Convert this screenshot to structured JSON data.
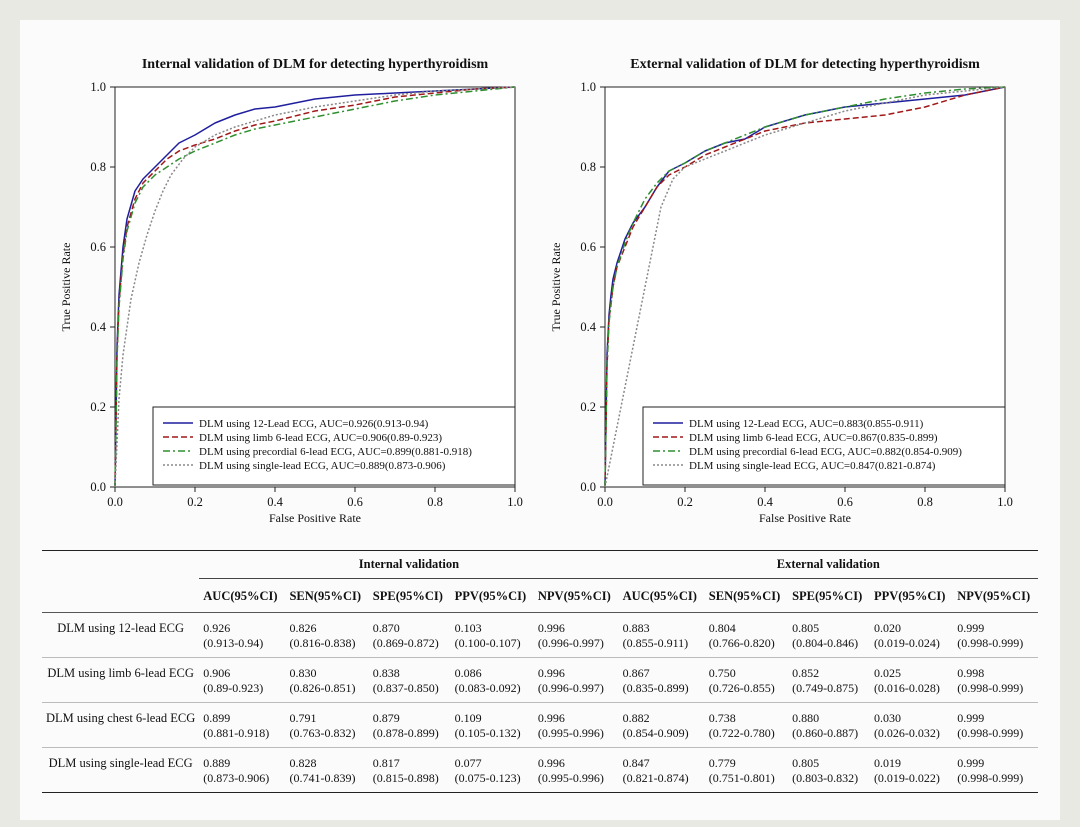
{
  "chart_data": [
    {
      "type": "line",
      "title": "Internal validation of DLM for detecting hyperthyroidism",
      "xlabel": "False Positive Rate",
      "ylabel": "True Positive Rate",
      "xlim": [
        0,
        1
      ],
      "ylim": [
        0,
        1
      ],
      "xticks": [
        "0.0",
        "0.2",
        "0.4",
        "0.6",
        "0.8",
        "1.0"
      ],
      "yticks": [
        "0.0",
        "0.2",
        "0.4",
        "0.6",
        "0.8",
        "1.0"
      ],
      "grid": false,
      "legend_position": "lower-right",
      "series": [
        {
          "name": "DLM using 12-Lead ECG, AUC=0.926(0.913-0.94)",
          "color": "#1f1f9e",
          "dash": "solid",
          "x": [
            0,
            0.005,
            0.01,
            0.02,
            0.03,
            0.05,
            0.07,
            0.1,
            0.13,
            0.16,
            0.2,
            0.25,
            0.3,
            0.35,
            0.4,
            0.5,
            0.6,
            0.7,
            0.8,
            0.9,
            1.0
          ],
          "y": [
            0,
            0.35,
            0.48,
            0.6,
            0.67,
            0.74,
            0.77,
            0.8,
            0.83,
            0.86,
            0.88,
            0.91,
            0.93,
            0.945,
            0.95,
            0.97,
            0.98,
            0.985,
            0.99,
            0.995,
            1.0
          ]
        },
        {
          "name": "DLM using limb 6-lead ECG, AUC=0.906(0.89-0.923)",
          "color": "#a01818",
          "dash": "6,3",
          "x": [
            0,
            0.005,
            0.01,
            0.02,
            0.03,
            0.05,
            0.07,
            0.1,
            0.13,
            0.16,
            0.2,
            0.25,
            0.3,
            0.35,
            0.4,
            0.5,
            0.6,
            0.7,
            0.8,
            0.9,
            1.0
          ],
          "y": [
            0,
            0.33,
            0.46,
            0.58,
            0.65,
            0.72,
            0.76,
            0.79,
            0.82,
            0.84,
            0.855,
            0.87,
            0.89,
            0.905,
            0.915,
            0.94,
            0.955,
            0.975,
            0.985,
            0.995,
            1.0
          ]
        },
        {
          "name": "DLM using precordial 6-lead ECG, AUC=0.899(0.881-0.918)",
          "color": "#2f8f2f",
          "dash": "7,3,2,3",
          "x": [
            0,
            0.005,
            0.01,
            0.02,
            0.03,
            0.05,
            0.07,
            0.1,
            0.13,
            0.16,
            0.2,
            0.25,
            0.3,
            0.35,
            0.4,
            0.5,
            0.6,
            0.7,
            0.8,
            0.9,
            1.0
          ],
          "y": [
            0,
            0.32,
            0.45,
            0.57,
            0.64,
            0.71,
            0.75,
            0.78,
            0.8,
            0.82,
            0.84,
            0.86,
            0.88,
            0.895,
            0.905,
            0.925,
            0.945,
            0.965,
            0.98,
            0.99,
            1.0
          ]
        },
        {
          "name": "DLM using single-lead ECG, AUC=0.889(0.873-0.906)",
          "color": "#888888",
          "dash": "2,2",
          "x": [
            0,
            0.01,
            0.02,
            0.04,
            0.06,
            0.08,
            0.1,
            0.12,
            0.14,
            0.17,
            0.2,
            0.25,
            0.3,
            0.4,
            0.5,
            0.6,
            0.7,
            0.8,
            0.9,
            1.0
          ],
          "y": [
            0,
            0.22,
            0.33,
            0.47,
            0.56,
            0.63,
            0.69,
            0.74,
            0.78,
            0.82,
            0.85,
            0.88,
            0.9,
            0.93,
            0.95,
            0.965,
            0.98,
            0.99,
            0.995,
            1.0
          ]
        }
      ]
    },
    {
      "type": "line",
      "title": "External validation of DLM for detecting hyperthyroidism",
      "xlabel": "False Positive Rate",
      "ylabel": "True Positive Rate",
      "xlim": [
        0,
        1
      ],
      "ylim": [
        0,
        1
      ],
      "xticks": [
        "0.0",
        "0.2",
        "0.4",
        "0.6",
        "0.8",
        "1.0"
      ],
      "yticks": [
        "0.0",
        "0.2",
        "0.4",
        "0.6",
        "0.8",
        "1.0"
      ],
      "grid": false,
      "legend_position": "lower-right",
      "series": [
        {
          "name": "DLM using 12-Lead ECG, AUC=0.883(0.855-0.911)",
          "color": "#1f1f9e",
          "dash": "solid",
          "x": [
            0,
            0.005,
            0.01,
            0.015,
            0.02,
            0.03,
            0.04,
            0.05,
            0.07,
            0.1,
            0.13,
            0.16,
            0.2,
            0.25,
            0.3,
            0.35,
            0.4,
            0.5,
            0.6,
            0.7,
            0.8,
            0.9,
            0.95,
            1.0
          ],
          "y": [
            0,
            0.33,
            0.43,
            0.48,
            0.52,
            0.56,
            0.59,
            0.62,
            0.66,
            0.7,
            0.75,
            0.79,
            0.81,
            0.84,
            0.86,
            0.87,
            0.9,
            0.93,
            0.95,
            0.96,
            0.97,
            0.98,
            0.99,
            1.0
          ]
        },
        {
          "name": "DLM using limb 6-lead ECG, AUC=0.867(0.835-0.899)",
          "color": "#a01818",
          "dash": "6,3",
          "x": [
            0,
            0.005,
            0.01,
            0.02,
            0.03,
            0.05,
            0.07,
            0.1,
            0.13,
            0.16,
            0.2,
            0.25,
            0.3,
            0.35,
            0.4,
            0.5,
            0.6,
            0.7,
            0.8,
            0.9,
            1.0
          ],
          "y": [
            0,
            0.3,
            0.42,
            0.5,
            0.55,
            0.6,
            0.65,
            0.7,
            0.75,
            0.78,
            0.8,
            0.83,
            0.85,
            0.87,
            0.89,
            0.91,
            0.92,
            0.93,
            0.95,
            0.98,
            1.0
          ]
        },
        {
          "name": "DLM using precordial 6-lead ECG, AUC=0.882(0.854-0.909)",
          "color": "#2f8f2f",
          "dash": "7,3,2,3",
          "x": [
            0,
            0.005,
            0.01,
            0.02,
            0.03,
            0.05,
            0.07,
            0.1,
            0.13,
            0.16,
            0.2,
            0.25,
            0.3,
            0.35,
            0.4,
            0.5,
            0.6,
            0.7,
            0.8,
            0.9,
            1.0
          ],
          "y": [
            0,
            0.3,
            0.41,
            0.5,
            0.55,
            0.61,
            0.66,
            0.72,
            0.76,
            0.79,
            0.81,
            0.84,
            0.86,
            0.88,
            0.9,
            0.93,
            0.95,
            0.97,
            0.985,
            0.995,
            1.0
          ]
        },
        {
          "name": "DLM using single-lead ECG, AUC=0.847(0.821-0.874)",
          "color": "#888888",
          "dash": "2,2",
          "x": [
            0,
            0.02,
            0.04,
            0.06,
            0.08,
            0.1,
            0.12,
            0.14,
            0.17,
            0.2,
            0.25,
            0.3,
            0.35,
            0.4,
            0.5,
            0.6,
            0.7,
            0.8,
            0.9,
            1.0
          ],
          "y": [
            0,
            0.1,
            0.2,
            0.3,
            0.4,
            0.5,
            0.6,
            0.7,
            0.77,
            0.8,
            0.82,
            0.84,
            0.86,
            0.88,
            0.91,
            0.94,
            0.96,
            0.98,
            0.99,
            1.0
          ]
        }
      ]
    }
  ],
  "table": {
    "group_internal": "Internal validation",
    "group_external": "External validation",
    "metrics": [
      "AUC(95%CI)",
      "SEN(95%CI)",
      "SPE(95%CI)",
      "PPV(95%CI)",
      "NPV(95%CI)"
    ],
    "rows": [
      {
        "model": "DLM using 12-lead ECG",
        "cells": [
          [
            "0.926",
            "(0.913-0.94)"
          ],
          [
            "0.826",
            "(0.816-0.838)"
          ],
          [
            "0.870",
            "(0.869-0.872)"
          ],
          [
            "0.103",
            "(0.100-0.107)"
          ],
          [
            "0.996",
            "(0.996-0.997)"
          ],
          [
            "0.883",
            "(0.855-0.911)"
          ],
          [
            "0.804",
            "(0.766-0.820)"
          ],
          [
            "0.805",
            "(0.804-0.846)"
          ],
          [
            "0.020",
            "(0.019-0.024)"
          ],
          [
            "0.999",
            "(0.998-0.999)"
          ]
        ]
      },
      {
        "model": "DLM using limb 6-lead ECG",
        "cells": [
          [
            "0.906",
            "(0.89-0.923)"
          ],
          [
            "0.830",
            "(0.826-0.851)"
          ],
          [
            "0.838",
            "(0.837-0.850)"
          ],
          [
            "0.086",
            "(0.083-0.092)"
          ],
          [
            "0.996",
            "(0.996-0.997)"
          ],
          [
            "0.867",
            "(0.835-0.899)"
          ],
          [
            "0.750",
            "(0.726-0.855)"
          ],
          [
            "0.852",
            "(0.749-0.875)"
          ],
          [
            "0.025",
            "(0.016-0.028)"
          ],
          [
            "0.998",
            "(0.998-0.999)"
          ]
        ]
      },
      {
        "model": "DLM using chest 6-lead ECG",
        "cells": [
          [
            "0.899",
            "(0.881-0.918)"
          ],
          [
            "0.791",
            "(0.763-0.832)"
          ],
          [
            "0.879",
            "(0.878-0.899)"
          ],
          [
            "0.109",
            "(0.105-0.132)"
          ],
          [
            "0.996",
            "(0.995-0.996)"
          ],
          [
            "0.882",
            "(0.854-0.909)"
          ],
          [
            "0.738",
            "(0.722-0.780)"
          ],
          [
            "0.880",
            "(0.860-0.887)"
          ],
          [
            "0.030",
            "(0.026-0.032)"
          ],
          [
            "0.999",
            "(0.998-0.999)"
          ]
        ]
      },
      {
        "model": "DLM using single-lead ECG",
        "cells": [
          [
            "0.889",
            "(0.873-0.906)"
          ],
          [
            "0.828",
            "(0.741-0.839)"
          ],
          [
            "0.817",
            "(0.815-0.898)"
          ],
          [
            "0.077",
            "(0.075-0.123)"
          ],
          [
            "0.996",
            "(0.995-0.996)"
          ],
          [
            "0.847",
            "(0.821-0.874)"
          ],
          [
            "0.779",
            "(0.751-0.801)"
          ],
          [
            "0.805",
            "(0.803-0.832)"
          ],
          [
            "0.019",
            "(0.019-0.022)"
          ],
          [
            "0.999",
            "(0.998-0.999)"
          ]
        ]
      }
    ]
  }
}
